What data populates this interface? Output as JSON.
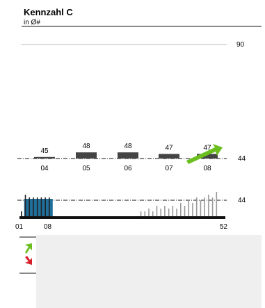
{
  "title": "Kennzahl C",
  "subtitle": "in Ø#",
  "chart_data": [
    {
      "type": "bar",
      "categories": [
        "04",
        "05",
        "06",
        "07",
        "08"
      ],
      "values": [
        45,
        48,
        48,
        47,
        47
      ],
      "data_labels": [
        "45",
        "48",
        "48",
        "47",
        "47"
      ],
      "ylim": [
        40,
        90
      ],
      "reference_line": {
        "value": 44,
        "label": "44"
      },
      "top_line": {
        "value": 90,
        "label": "90"
      },
      "grid": false
    },
    {
      "type": "bar",
      "x_range": [
        1,
        52
      ],
      "tick_labels": [
        "01",
        "08",
        "52"
      ],
      "highlight_weeks": [
        2,
        8
      ],
      "reference_line": {
        "value": 44,
        "label": "44"
      },
      "weekly": [
        {
          "w": 1,
          "v": 40
        },
        {
          "w": 2,
          "v": 46
        },
        {
          "w": 3,
          "v": 45
        },
        {
          "w": 4,
          "v": 45
        },
        {
          "w": 5,
          "v": 45
        },
        {
          "w": 6,
          "v": 45
        },
        {
          "w": 7,
          "v": 45
        },
        {
          "w": 8,
          "v": 45
        },
        {
          "w": 31,
          "v": 40
        },
        {
          "w": 32,
          "v": 40
        },
        {
          "w": 33,
          "v": 41
        },
        {
          "w": 34,
          "v": 40
        },
        {
          "w": 35,
          "v": 42
        },
        {
          "w": 36,
          "v": 41
        },
        {
          "w": 37,
          "v": 42
        },
        {
          "w": 38,
          "v": 41
        },
        {
          "w": 39,
          "v": 42
        },
        {
          "w": 40,
          "v": 41
        },
        {
          "w": 41,
          "v": 43
        },
        {
          "w": 42,
          "v": 42
        },
        {
          "w": 43,
          "v": 44
        },
        {
          "w": 44,
          "v": 43
        },
        {
          "w": 45,
          "v": 45
        },
        {
          "w": 46,
          "v": 44
        },
        {
          "w": 47,
          "v": 45
        },
        {
          "w": 48,
          "v": 46
        },
        {
          "w": 49,
          "v": 45
        },
        {
          "w": 50,
          "v": 47
        }
      ],
      "grid": false
    }
  ],
  "colors": {
    "bar": "#444444",
    "highlight": "#1f6f9c",
    "weekly_bar": "#999999",
    "trend_up": "#6abf1f",
    "trend_down": "#d9202a",
    "panel": "#efefef"
  },
  "icons": [
    "trend-up-arrow-icon",
    "trend-down-arrow-icon"
  ]
}
